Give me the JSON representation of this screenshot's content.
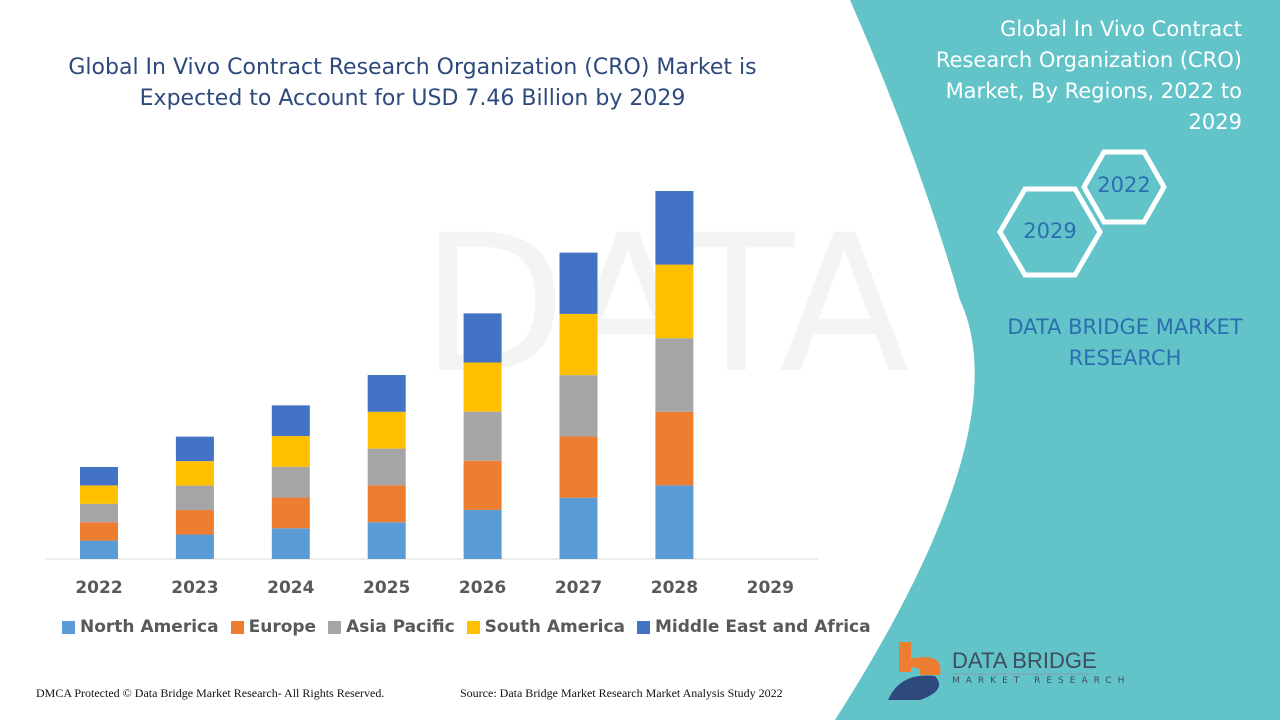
{
  "title": "Global In Vivo Contract Research Organization (CRO) Market is Expected to Account for USD 7.46 Billion by 2029",
  "side_panel": {
    "title": "Global In Vivo Contract Research Organization (CRO) Market, By Regions, 2022 to 2029",
    "hex_start": "2022",
    "hex_end": "2029",
    "brand": "DATA BRIDGE MARKET RESEARCH",
    "panel_color": "#62c4c9"
  },
  "logo": {
    "name": "DATA BRIDGE",
    "sub": "MARKET RESEARCH"
  },
  "footer": {
    "left": "DMCA Protected © Data Bridge Market Research- All Rights Reserved.",
    "right": "Source: Data Bridge Market Research Market Analysis Study 2022"
  },
  "watermark": "DATA BRIDGE MARKET RESEARCH",
  "chart_data": {
    "type": "bar",
    "stacked": true,
    "y_axis_shown": false,
    "grid": false,
    "legend_position": "bottom",
    "categories": [
      "2022",
      "2023",
      "2024",
      "2025",
      "2026",
      "2027",
      "2028",
      "2029"
    ],
    "series": [
      {
        "name": "North America",
        "color": "#5b9bd5",
        "values": [
          1,
          1.33,
          1.67,
          2,
          2.67,
          3.33,
          4,
          0
        ]
      },
      {
        "name": "Europe",
        "color": "#ed7d31",
        "values": [
          1,
          1.33,
          1.67,
          2,
          2.67,
          3.33,
          4,
          0
        ]
      },
      {
        "name": "Asia Pacific",
        "color": "#a5a5a5",
        "values": [
          1,
          1.33,
          1.67,
          2,
          2.67,
          3.33,
          4,
          0
        ]
      },
      {
        "name": "South America",
        "color": "#ffc000",
        "values": [
          1,
          1.33,
          1.67,
          2,
          2.67,
          3.33,
          4,
          0
        ]
      },
      {
        "name": "Middle East and Africa",
        "color": "#4472c4",
        "values": [
          1,
          1.33,
          1.67,
          2,
          2.67,
          3.33,
          4,
          0
        ]
      }
    ]
  }
}
